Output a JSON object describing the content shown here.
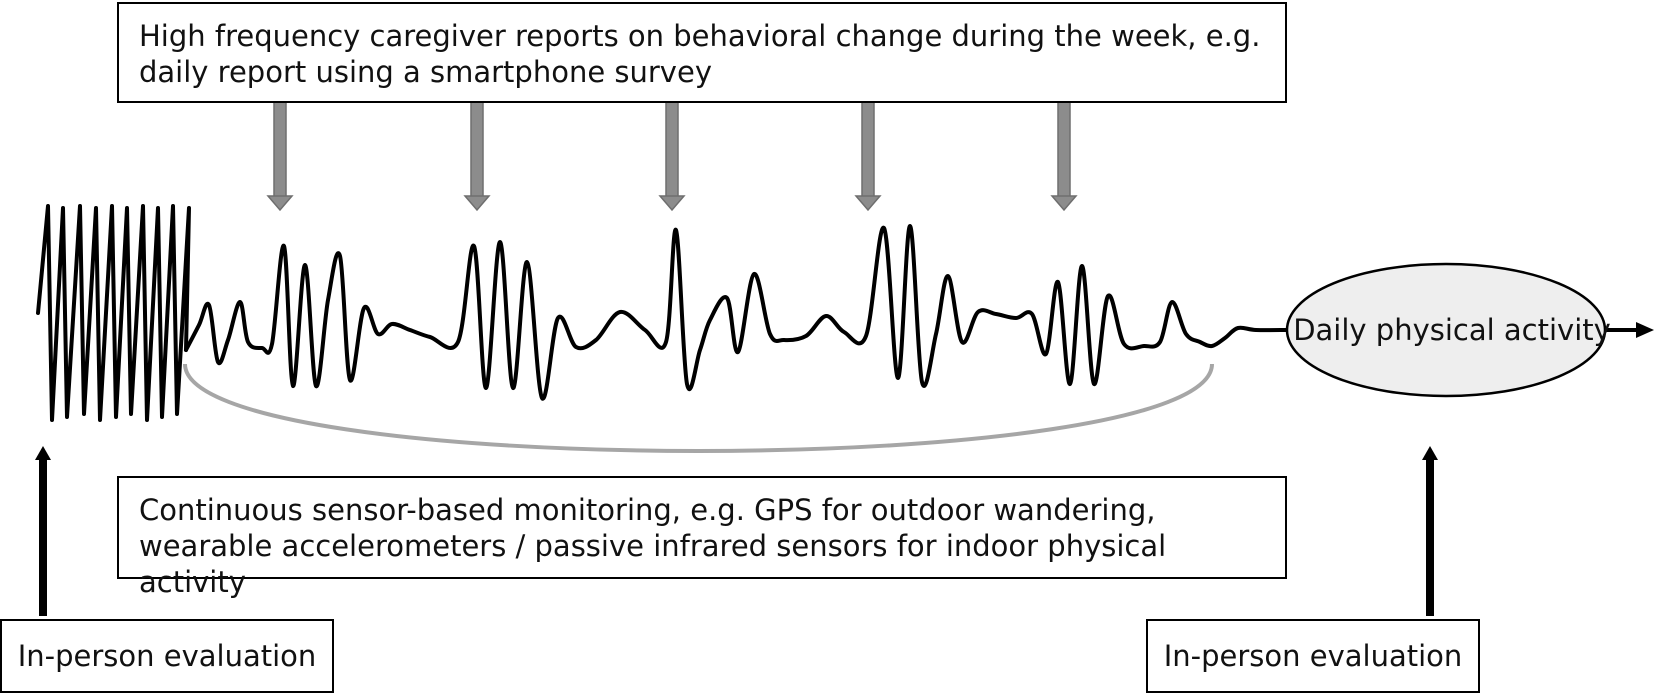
{
  "top_box": {
    "text": "High frequency caregiver reports on behavioral change during the week, e.g. daily report using a smartphone survey"
  },
  "bottom_box": {
    "text": "Continuous sensor-based monitoring, e.g. GPS for outdoor wandering, wearable accelerometers / passive infrared sensors for indoor physical activity"
  },
  "ellipse": {
    "label": "Daily physical activity",
    "fill": "#eeeeee"
  },
  "left_eval": {
    "label": "In-person evaluation"
  },
  "right_eval": {
    "label": "In-person evaluation"
  },
  "colors": {
    "report_arrows": "#8c8c8c",
    "bracket": "#a6a6a6",
    "signal": "#000000"
  }
}
